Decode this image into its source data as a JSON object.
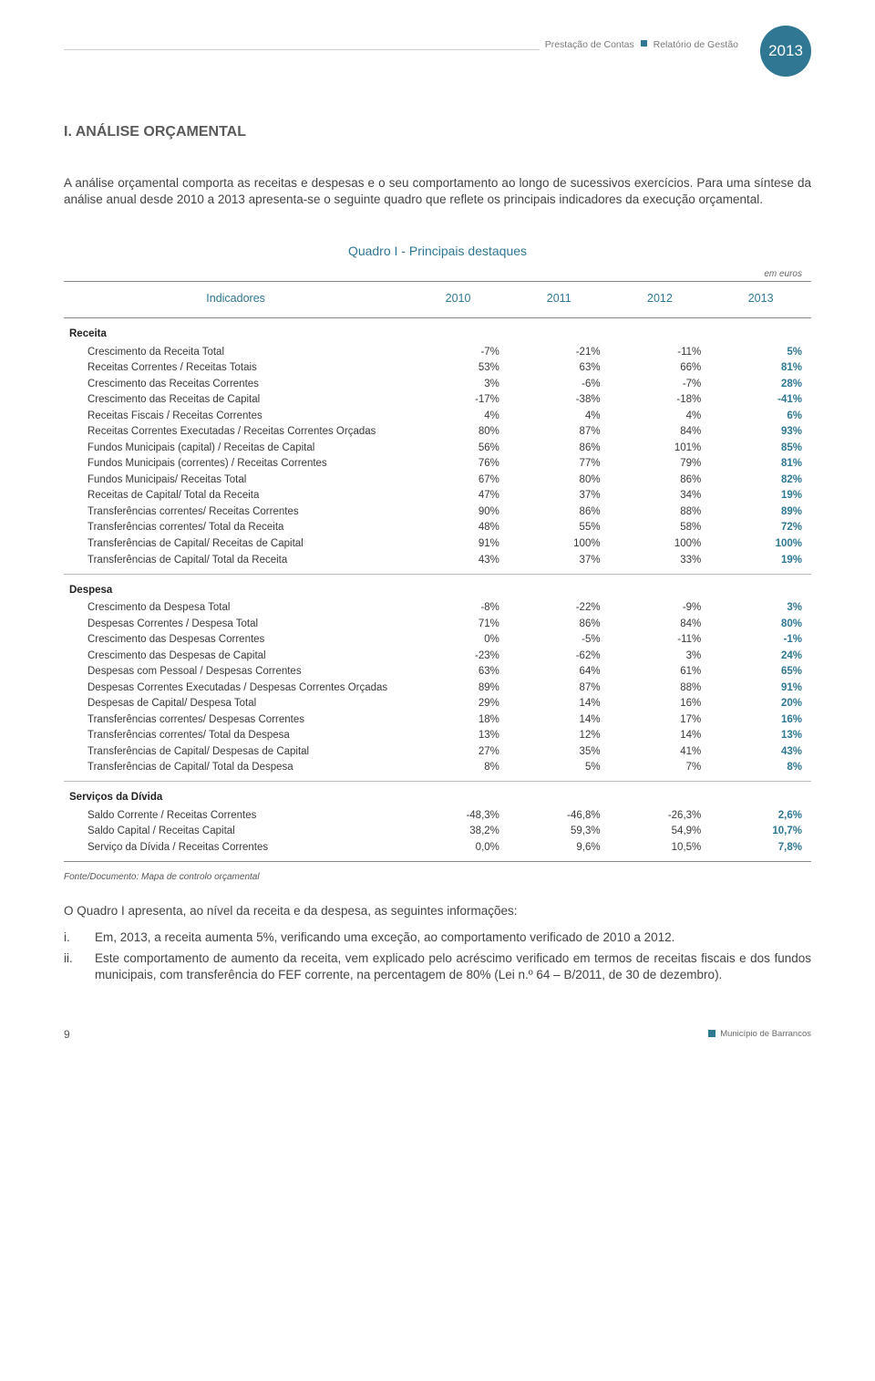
{
  "header": {
    "left": "Prestação de Contas",
    "right": "Relatório de Gestão",
    "year": "2013"
  },
  "section_title": "I.   ANÁLISE ORÇAMENTAL",
  "intro": "A análise orçamental comporta as receitas e despesas e o seu comportamento ao longo de sucessivos exercícios. Para uma síntese da análise anual desde 2010 a 2013 apresenta-se o seguinte quadro que reflete os principais indicadores da execução orçamental.",
  "table": {
    "title": "Quadro I - Principais destaques",
    "unit": "em euros",
    "col_header": "Indicadores",
    "years": [
      "2010",
      "2011",
      "2012",
      "2013"
    ],
    "col_widths_pct": [
      46,
      13.5,
      13.5,
      13.5,
      13.5
    ],
    "colors": {
      "header_text": "#2f7793",
      "rule": "#888888",
      "last_col": "#2f7793",
      "body_text": "#3a3a3a"
    },
    "font_sizes": {
      "header": 12.5,
      "body": 11.5,
      "unit": 10
    },
    "sections": [
      {
        "name": "Receita",
        "rows": [
          {
            "label": "Crescimento da Receita Total",
            "v": [
              "-7%",
              "-21%",
              "-11%",
              "5%"
            ]
          },
          {
            "label": "Receitas Correntes / Receitas Totais",
            "v": [
              "53%",
              "63%",
              "66%",
              "81%"
            ]
          },
          {
            "label": "Crescimento das Receitas Correntes",
            "v": [
              "3%",
              "-6%",
              "-7%",
              "28%"
            ]
          },
          {
            "label": "Crescimento das Receitas de Capital",
            "v": [
              "-17%",
              "-38%",
              "-18%",
              "-41%"
            ]
          },
          {
            "label": "Receitas Fiscais / Receitas Correntes",
            "v": [
              "4%",
              "4%",
              "4%",
              "6%"
            ]
          },
          {
            "label": "Receitas Correntes Executadas / Receitas Correntes Orçadas",
            "v": [
              "80%",
              "87%",
              "84%",
              "93%"
            ]
          },
          {
            "label": "Fundos Municipais (capital) / Receitas de Capital",
            "v": [
              "56%",
              "86%",
              "101%",
              "85%"
            ]
          },
          {
            "label": "Fundos Municipais (correntes) / Receitas Correntes",
            "v": [
              "76%",
              "77%",
              "79%",
              "81%"
            ]
          },
          {
            "label": "Fundos Municipais/ Receitas Total",
            "v": [
              "67%",
              "80%",
              "86%",
              "82%"
            ]
          },
          {
            "label": "Receitas de Capital/ Total da Receita",
            "v": [
              "47%",
              "37%",
              "34%",
              "19%"
            ]
          },
          {
            "label": "Transferências correntes/ Receitas Correntes",
            "v": [
              "90%",
              "86%",
              "88%",
              "89%"
            ]
          },
          {
            "label": "Transferências correntes/ Total da Receita",
            "v": [
              "48%",
              "55%",
              "58%",
              "72%"
            ]
          },
          {
            "label": "Transferências de Capital/ Receitas de Capital",
            "v": [
              "91%",
              "100%",
              "100%",
              "100%"
            ]
          },
          {
            "label": "Transferências de Capital/ Total da Receita",
            "v": [
              "43%",
              "37%",
              "33%",
              "19%"
            ]
          }
        ]
      },
      {
        "name": "Despesa",
        "rows": [
          {
            "label": "Crescimento da Despesa Total",
            "v": [
              "-8%",
              "-22%",
              "-9%",
              "3%"
            ]
          },
          {
            "label": "Despesas Correntes / Despesa Total",
            "v": [
              "71%",
              "86%",
              "84%",
              "80%"
            ]
          },
          {
            "label": "Crescimento das Despesas Correntes",
            "v": [
              "0%",
              "-5%",
              "-11%",
              "-1%"
            ]
          },
          {
            "label": "Crescimento das Despesas de Capital",
            "v": [
              "-23%",
              "-62%",
              "3%",
              "24%"
            ]
          },
          {
            "label": "Despesas com Pessoal / Despesas Correntes",
            "v": [
              "63%",
              "64%",
              "61%",
              "65%"
            ]
          },
          {
            "label": "Despesas Correntes Executadas / Despesas Correntes Orçadas",
            "v": [
              "89%",
              "87%",
              "88%",
              "91%"
            ]
          },
          {
            "label": "Despesas de Capital/ Despesa Total",
            "v": [
              "29%",
              "14%",
              "16%",
              "20%"
            ]
          },
          {
            "label": "Transferências correntes/ Despesas Correntes",
            "v": [
              "18%",
              "14%",
              "17%",
              "16%"
            ]
          },
          {
            "label": "Transferências correntes/ Total da Despesa",
            "v": [
              "13%",
              "12%",
              "14%",
              "13%"
            ]
          },
          {
            "label": "Transferências de Capital/ Despesas de Capital",
            "v": [
              "27%",
              "35%",
              "41%",
              "43%"
            ]
          },
          {
            "label": "Transferências de Capital/ Total da Despesa",
            "v": [
              "8%",
              "5%",
              "7%",
              "8%"
            ]
          }
        ]
      },
      {
        "name": "Serviços da Dívida",
        "rows": [
          {
            "label": "Saldo Corrente / Receitas Correntes",
            "v": [
              "-48,3%",
              "-46,8%",
              "-26,3%",
              "2,6%"
            ]
          },
          {
            "label": "Saldo Capital / Receitas Capital",
            "v": [
              "38,2%",
              "59,3%",
              "54,9%",
              "10,7%"
            ]
          },
          {
            "label": "Serviço da Dívida / Receitas Correntes",
            "v": [
              "0,0%",
              "9,6%",
              "10,5%",
              "7,8%"
            ]
          }
        ]
      }
    ]
  },
  "fonte": "Fonte/Documento: Mapa de controlo orçamental",
  "post_text": "O Quadro I apresenta, ao nível da receita e da despesa, as seguintes informações:",
  "findings": [
    {
      "num": "i.",
      "text": "Em, 2013, a receita aumenta 5%, verificando uma exceção, ao comportamento verificado de 2010 a 2012."
    },
    {
      "num": "ii.",
      "text": "Este comportamento de aumento da receita, vem explicado pelo acréscimo verificado em termos de receitas fiscais e dos fundos municipais, com transferência do FEF corrente, na percentagem de 80% (Lei n.º 64 – B/2011, de 30 de dezembro)."
    }
  ],
  "footer": {
    "page": "9",
    "mun": "Município de Barrancos"
  }
}
